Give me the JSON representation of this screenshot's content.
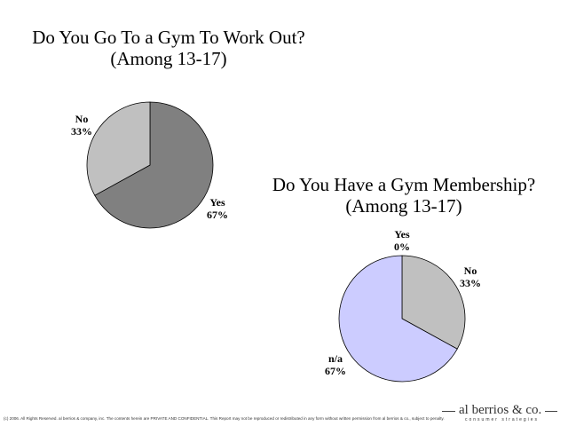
{
  "chart_data": [
    {
      "type": "pie",
      "title": "Do You Go To a Gym To Work Out?",
      "subtitle": "(Among 13-17)",
      "slices": [
        {
          "label": "Yes",
          "value": 67,
          "value_label": "67%",
          "color": "#808080"
        },
        {
          "label": "No",
          "value": 33,
          "value_label": "33%",
          "color": "#c0c0c0"
        }
      ]
    },
    {
      "type": "pie",
      "title": "Do You Have a Gym Membership?",
      "subtitle": "(Among 13-17)",
      "slices": [
        {
          "label": "Yes",
          "value": 0,
          "value_label": "0%",
          "color": "#ffffff"
        },
        {
          "label": "No",
          "value": 33,
          "value_label": "33%",
          "color": "#c0c0c0"
        },
        {
          "label": "n/a",
          "value": 67,
          "value_label": "67%",
          "color": "#ccccff"
        }
      ]
    }
  ],
  "footer": {
    "copyright": "(c) 2006. All Rights Reserved. al berrios & company, inc. The contents herein are PRIVATE AND CONFIDENTIAL. This Report may not be reproduced or redistributed in any form without written permission from al berrios & co., subject to penalty."
  },
  "logo": {
    "name": "al berrios & co.",
    "tagline": "consumer strategies"
  }
}
